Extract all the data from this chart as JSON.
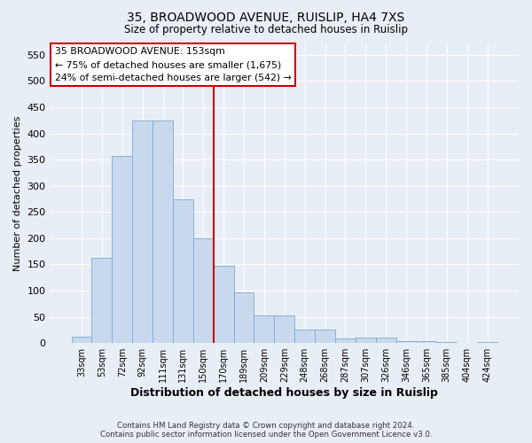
{
  "title1": "35, BROADWOOD AVENUE, RUISLIP, HA4 7XS",
  "title2": "Size of property relative to detached houses in Ruislip",
  "xlabel": "Distribution of detached houses by size in Ruislip",
  "ylabel": "Number of detached properties",
  "categories": [
    "33sqm",
    "53sqm",
    "72sqm",
    "92sqm",
    "111sqm",
    "131sqm",
    "150sqm",
    "170sqm",
    "189sqm",
    "209sqm",
    "229sqm",
    "248sqm",
    "268sqm",
    "287sqm",
    "307sqm",
    "326sqm",
    "346sqm",
    "365sqm",
    "385sqm",
    "404sqm",
    "424sqm"
  ],
  "bar_heights": [
    13,
    163,
    357,
    425,
    425,
    275,
    200,
    148,
    96,
    53,
    53,
    26,
    26,
    8,
    11,
    11,
    4,
    3,
    2,
    1,
    2
  ],
  "bar_color": "#c8d9ee",
  "bar_edge_color": "#7aaacf",
  "vline_x": 6.5,
  "vline_color": "#cc0000",
  "annotation_title": "35 BROADWOOD AVENUE: 153sqm",
  "annotation_line1": "← 75% of detached houses are smaller (1,675)",
  "annotation_line2": "24% of semi-detached houses are larger (542) →",
  "annotation_box_facecolor": "#ffffff",
  "annotation_box_edgecolor": "#cc0000",
  "ylim": [
    0,
    570
  ],
  "yticks": [
    0,
    50,
    100,
    150,
    200,
    250,
    300,
    350,
    400,
    450,
    500,
    550
  ],
  "footer1": "Contains HM Land Registry data © Crown copyright and database right 2024.",
  "footer2": "Contains public sector information licensed under the Open Government Licence v3.0.",
  "background_color": "#e8eef5",
  "grid_color": "#ffffff"
}
